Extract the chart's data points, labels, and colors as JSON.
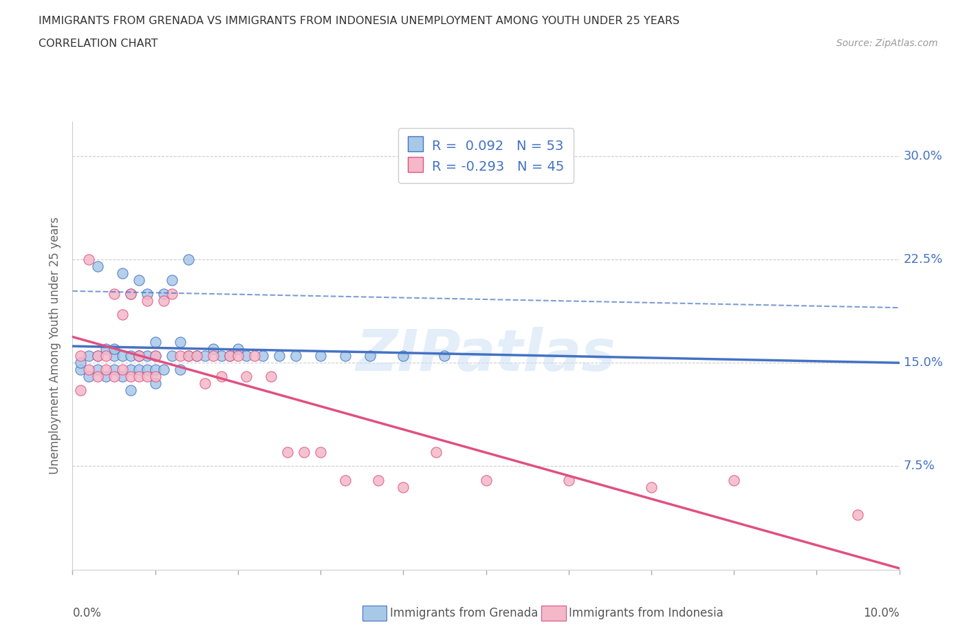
{
  "title_line1": "IMMIGRANTS FROM GRENADA VS IMMIGRANTS FROM INDONESIA UNEMPLOYMENT AMONG YOUTH UNDER 25 YEARS",
  "title_line2": "CORRELATION CHART",
  "source_text": "Source: ZipAtlas.com",
  "ylabel_label": "Unemployment Among Youth under 25 years",
  "legend_grenada": "Immigrants from Grenada",
  "legend_indonesia": "Immigrants from Indonesia",
  "R_grenada": 0.092,
  "N_grenada": 53,
  "R_indonesia": -0.293,
  "N_indonesia": 45,
  "color_grenada": "#a8c8e8",
  "color_indonesia": "#f4b8c8",
  "color_grenada_line": "#4472c4",
  "color_indonesia_line": "#e05080",
  "watermark": "ZIPatlas",
  "grenada_x": [
    0.001,
    0.001,
    0.002,
    0.002,
    0.003,
    0.003,
    0.003,
    0.004,
    0.004,
    0.005,
    0.005,
    0.005,
    0.006,
    0.006,
    0.006,
    0.007,
    0.007,
    0.007,
    0.007,
    0.008,
    0.008,
    0.008,
    0.008,
    0.009,
    0.009,
    0.009,
    0.01,
    0.01,
    0.01,
    0.01,
    0.011,
    0.011,
    0.012,
    0.012,
    0.013,
    0.013,
    0.014,
    0.014,
    0.015,
    0.016,
    0.017,
    0.018,
    0.019,
    0.02,
    0.021,
    0.023,
    0.025,
    0.027,
    0.03,
    0.033,
    0.036,
    0.04,
    0.045
  ],
  "grenada_y": [
    0.145,
    0.15,
    0.14,
    0.155,
    0.145,
    0.155,
    0.22,
    0.14,
    0.16,
    0.145,
    0.155,
    0.16,
    0.14,
    0.155,
    0.215,
    0.13,
    0.145,
    0.155,
    0.2,
    0.145,
    0.155,
    0.155,
    0.21,
    0.145,
    0.155,
    0.2,
    0.135,
    0.145,
    0.155,
    0.165,
    0.145,
    0.2,
    0.155,
    0.21,
    0.145,
    0.165,
    0.155,
    0.225,
    0.155,
    0.155,
    0.16,
    0.155,
    0.155,
    0.16,
    0.155,
    0.155,
    0.155,
    0.155,
    0.155,
    0.155,
    0.155,
    0.155,
    0.155
  ],
  "indonesia_x": [
    0.001,
    0.001,
    0.002,
    0.002,
    0.003,
    0.003,
    0.004,
    0.004,
    0.005,
    0.005,
    0.006,
    0.006,
    0.007,
    0.007,
    0.008,
    0.008,
    0.009,
    0.009,
    0.01,
    0.01,
    0.011,
    0.012,
    0.013,
    0.014,
    0.015,
    0.016,
    0.017,
    0.018,
    0.019,
    0.02,
    0.021,
    0.022,
    0.024,
    0.026,
    0.028,
    0.03,
    0.033,
    0.037,
    0.04,
    0.044,
    0.05,
    0.06,
    0.07,
    0.08,
    0.095
  ],
  "indonesia_y": [
    0.155,
    0.13,
    0.145,
    0.225,
    0.14,
    0.155,
    0.145,
    0.155,
    0.14,
    0.2,
    0.145,
    0.185,
    0.14,
    0.2,
    0.14,
    0.155,
    0.14,
    0.195,
    0.14,
    0.155,
    0.195,
    0.2,
    0.155,
    0.155,
    0.155,
    0.135,
    0.155,
    0.14,
    0.155,
    0.155,
    0.14,
    0.155,
    0.14,
    0.085,
    0.085,
    0.085,
    0.065,
    0.065,
    0.06,
    0.085,
    0.065,
    0.065,
    0.06,
    0.065,
    0.04
  ],
  "xmin": 0.0,
  "xmax": 0.1,
  "ymin": 0.0,
  "ymax": 0.325,
  "yticks": [
    0.075,
    0.15,
    0.225,
    0.3
  ],
  "ytick_labels": [
    "7.5%",
    "15.0%",
    "22.5%",
    "30.0%"
  ]
}
